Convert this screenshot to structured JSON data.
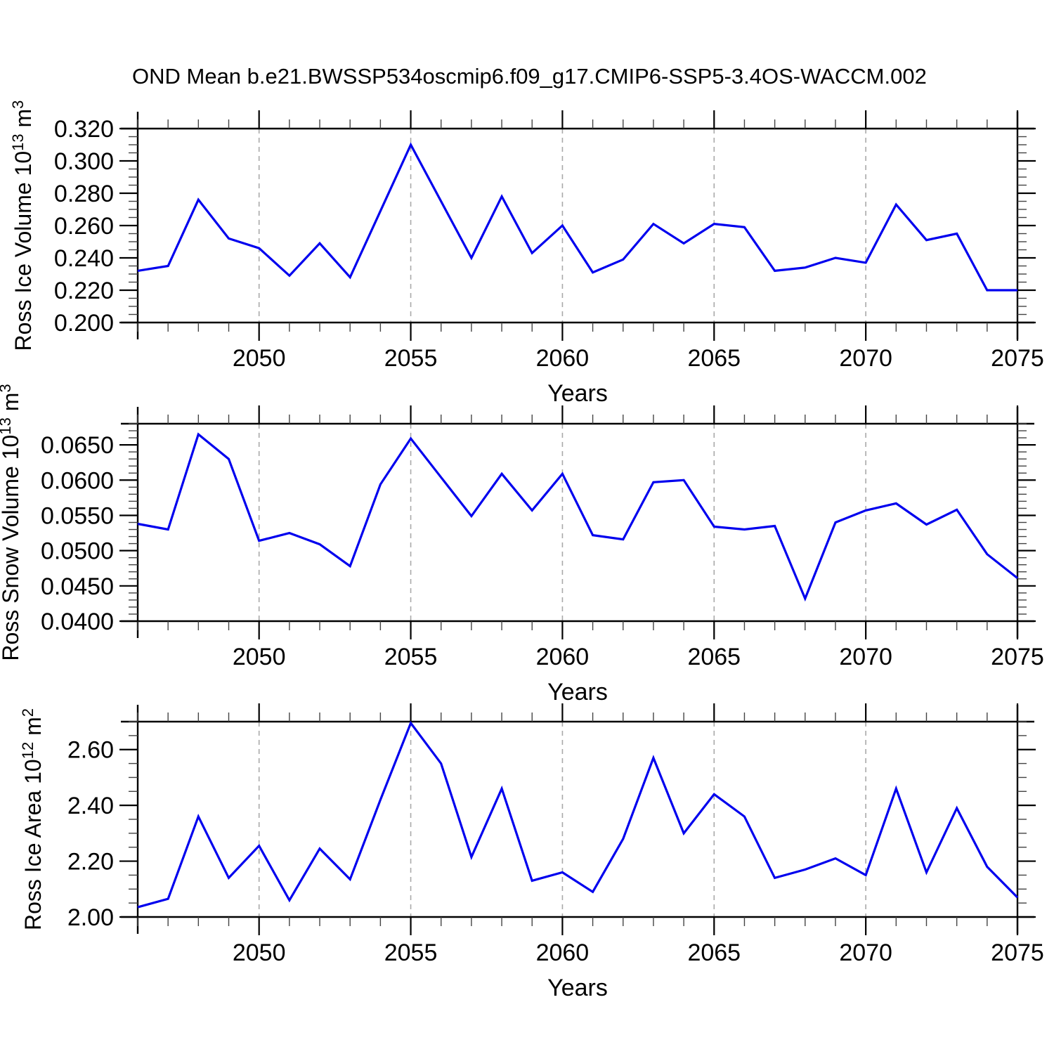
{
  "title": "OND Mean b.e21.BWSSP534oscmip6.f09_g17.CMIP6-SSP5-3.4OS-WACCM.002",
  "style": {
    "line_color": "#0000EE",
    "grid_color": "#A9A9A9",
    "frame_color": "#000000",
    "minor_tick_color": "#444444",
    "background": "#FFFFFF"
  },
  "chart_data": [
    {
      "id": "ross-ice-volume",
      "type": "line",
      "xlabel": "Years",
      "ylabel": "Ross Ice Volume 10^13 m^3",
      "ylabel_rich": [
        {
          "t": "Ross Ice Volume 10"
        },
        {
          "t": "13",
          "sup": true
        },
        {
          "t": " m"
        },
        {
          "t": "3",
          "sup": true
        }
      ],
      "xlim": [
        2046,
        2075
      ],
      "ylim": [
        0.2,
        0.32
      ],
      "grid": "vertical-dashed",
      "legend": null,
      "x": [
        2046,
        2047,
        2048,
        2049,
        2050,
        2051,
        2052,
        2053,
        2054,
        2055,
        2056,
        2057,
        2058,
        2059,
        2060,
        2061,
        2062,
        2063,
        2064,
        2065,
        2066,
        2067,
        2068,
        2069,
        2070,
        2071,
        2072,
        2073,
        2074,
        2075
      ],
      "values": [
        0.232,
        0.235,
        0.276,
        0.252,
        0.246,
        0.229,
        0.249,
        0.228,
        0.269,
        0.31,
        0.275,
        0.24,
        0.278,
        0.243,
        0.26,
        0.231,
        0.239,
        0.261,
        0.249,
        0.261,
        0.259,
        0.232,
        0.234,
        0.24,
        0.237,
        0.273,
        0.251,
        0.255,
        0.22,
        0.22
      ],
      "yticks": {
        "major": [
          0.2,
          0.22,
          0.24,
          0.26,
          0.28,
          0.3,
          0.32
        ],
        "labels": [
          "0.200",
          "0.220",
          "0.240",
          "0.260",
          "0.280",
          "0.300",
          "0.320"
        ],
        "minor_step": 0.005
      },
      "xticks": {
        "major": [
          2050,
          2055,
          2060,
          2065,
          2070,
          2075
        ],
        "labels": [
          "2050",
          "2055",
          "2060",
          "2065",
          "2070",
          "2075"
        ],
        "minor_step": 1
      },
      "x_gridlines": [
        2050,
        2055,
        2060,
        2065,
        2070
      ]
    },
    {
      "id": "ross-snow-volume",
      "type": "line",
      "xlabel": "Years",
      "ylabel": "Ross Snow Volume 10^13 m^3",
      "ylabel_rich": [
        {
          "t": "Ross Snow Volume 10"
        },
        {
          "t": "13",
          "sup": true
        },
        {
          "t": " m"
        },
        {
          "t": "3",
          "sup": true
        }
      ],
      "xlim": [
        2046,
        2075
      ],
      "ylim": [
        0.04,
        0.068
      ],
      "grid": "vertical-dashed",
      "legend": null,
      "x": [
        2046,
        2047,
        2048,
        2049,
        2050,
        2051,
        2052,
        2053,
        2054,
        2055,
        2056,
        2057,
        2058,
        2059,
        2060,
        2061,
        2062,
        2063,
        2064,
        2065,
        2066,
        2067,
        2068,
        2069,
        2070,
        2071,
        2072,
        2073,
        2074,
        2075
      ],
      "values": [
        0.0538,
        0.053,
        0.0665,
        0.063,
        0.0514,
        0.0525,
        0.0509,
        0.0478,
        0.0594,
        0.0659,
        0.0604,
        0.0549,
        0.0609,
        0.0557,
        0.0609,
        0.0522,
        0.0516,
        0.0597,
        0.06,
        0.0534,
        0.053,
        0.0535,
        0.0432,
        0.054,
        0.0557,
        0.0567,
        0.0537,
        0.0558,
        0.0495,
        0.0461
      ],
      "yticks": {
        "major": [
          0.04,
          0.045,
          0.05,
          0.055,
          0.06,
          0.065
        ],
        "labels": [
          "0.0400",
          "0.0450",
          "0.0500",
          "0.0550",
          "0.0600",
          "0.0650"
        ],
        "minor_step": 0.001
      },
      "xticks": {
        "major": [
          2050,
          2055,
          2060,
          2065,
          2070,
          2075
        ],
        "labels": [
          "2050",
          "2055",
          "2060",
          "2065",
          "2070",
          "2075"
        ],
        "minor_step": 1
      },
      "x_gridlines": [
        2050,
        2055,
        2060,
        2065,
        2070
      ]
    },
    {
      "id": "ross-ice-area",
      "type": "line",
      "xlabel": "Years",
      "ylabel": "Ross Ice Area 10^12 m^2",
      "ylabel_rich": [
        {
          "t": "Ross Ice Area 10"
        },
        {
          "t": "12",
          "sup": true
        },
        {
          "t": " m"
        },
        {
          "t": "2",
          "sup": true
        }
      ],
      "xlim": [
        2046,
        2075
      ],
      "ylim": [
        2.0,
        2.7
      ],
      "grid": "vertical-dashed",
      "legend": null,
      "x": [
        2046,
        2047,
        2048,
        2049,
        2050,
        2051,
        2052,
        2053,
        2054,
        2055,
        2056,
        2057,
        2058,
        2059,
        2060,
        2061,
        2062,
        2063,
        2064,
        2065,
        2066,
        2067,
        2068,
        2069,
        2070,
        2071,
        2072,
        2073,
        2074,
        2075
      ],
      "values": [
        2.035,
        2.065,
        2.36,
        2.14,
        2.255,
        2.06,
        2.245,
        2.135,
        2.42,
        2.695,
        2.55,
        2.215,
        2.46,
        2.13,
        2.16,
        2.09,
        2.28,
        2.57,
        2.3,
        2.44,
        2.36,
        2.14,
        2.17,
        2.21,
        2.15,
        2.46,
        2.16,
        2.39,
        2.18,
        2.07
      ],
      "yticks": {
        "major": [
          2.0,
          2.2,
          2.4,
          2.6
        ],
        "labels": [
          "2.00",
          "2.20",
          "2.40",
          "2.60"
        ],
        "minor_step": 0.05
      },
      "xticks": {
        "major": [
          2050,
          2055,
          2060,
          2065,
          2070,
          2075
        ],
        "labels": [
          "2050",
          "2055",
          "2060",
          "2065",
          "2070",
          "2075"
        ],
        "minor_step": 1
      },
      "x_gridlines": [
        2050,
        2055,
        2060,
        2065,
        2070
      ]
    }
  ]
}
